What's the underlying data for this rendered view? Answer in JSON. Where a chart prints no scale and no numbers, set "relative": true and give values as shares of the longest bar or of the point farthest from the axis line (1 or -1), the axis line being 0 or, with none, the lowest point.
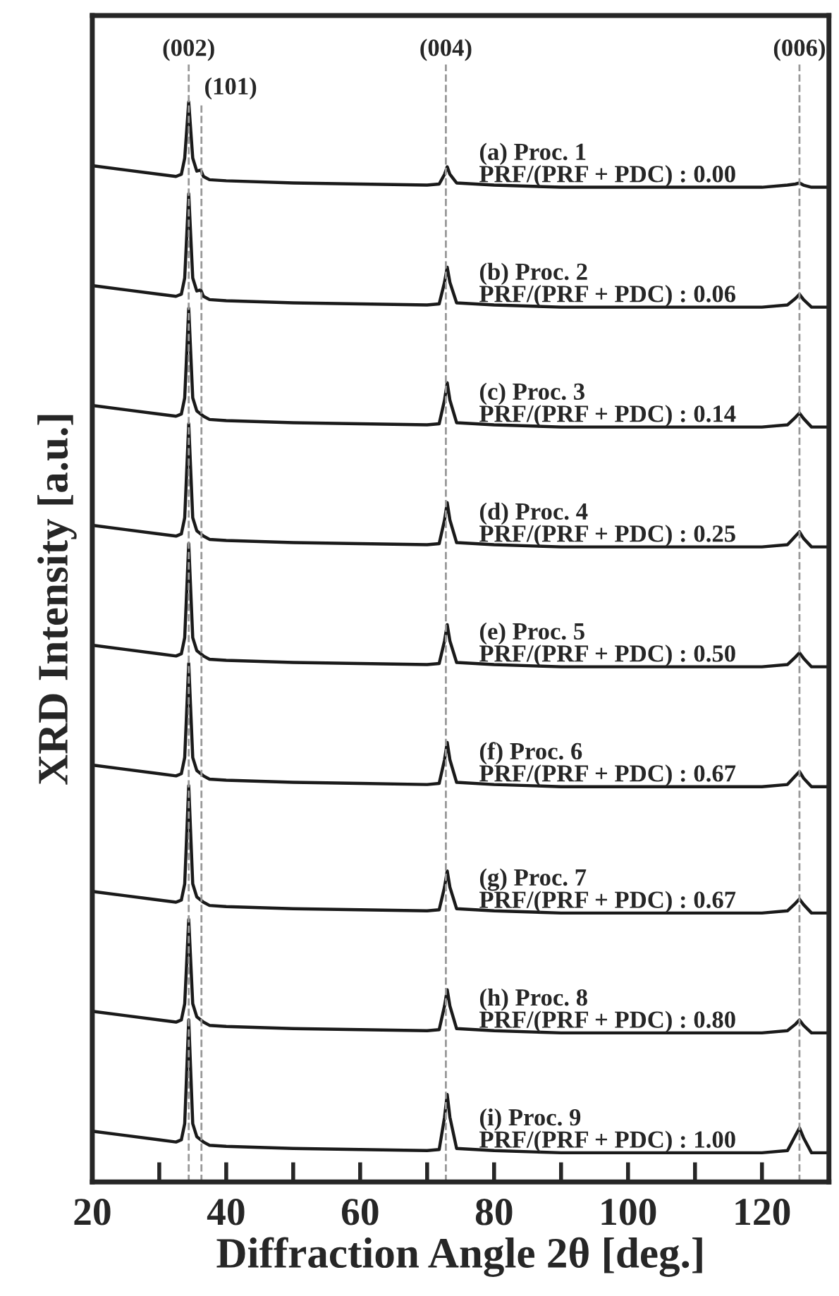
{
  "chart_data": {
    "type": "line",
    "relative": true,
    "xlabel": "Diffraction Angle 2θ [deg.]",
    "ylabel": "XRD Intensity [a.u.]",
    "x": [
      20,
      25,
      30,
      32.5,
      33.3,
      33.8,
      34.4,
      35.0,
      35.6,
      36.2,
      36.6,
      37.5,
      40,
      50,
      60,
      70,
      71.8,
      72.6,
      73.0,
      73.4,
      74.4,
      80,
      90,
      100,
      110,
      120,
      123.8,
      125.0,
      125.6,
      126.2,
      127.4,
      130
    ],
    "xlim": [
      20,
      130
    ],
    "xticks": [
      20,
      {
        "value": 30,
        "label": null
      },
      40,
      {
        "value": 50,
        "label": null
      },
      60,
      {
        "value": 70,
        "label": null
      },
      80,
      {
        "value": 90,
        "label": null
      },
      100,
      {
        "value": 110,
        "label": null
      },
      120
    ],
    "line_style": "solid",
    "marker": "none",
    "grid": false,
    "legend": false,
    "series": [
      {
        "name": "(a) Proc. 1\nPRF/(PRF + PDC) : 0.00",
        "color": "#1a1a1a",
        "values": [
          0.941,
          0.937,
          0.933,
          0.931,
          0.933,
          0.948,
          1.0,
          0.948,
          0.936,
          0.937,
          0.931,
          0.928,
          0.927,
          0.925,
          0.924,
          0.923,
          0.924,
          0.933,
          0.94,
          0.933,
          0.925,
          0.923,
          0.921,
          0.921,
          0.921,
          0.921,
          0.923,
          0.924,
          0.925,
          0.923,
          0.921,
          0.921
        ]
      },
      {
        "name": "(b) Proc. 2\nPRF/(PRF + PDC) : 0.06",
        "color": "#1a1a1a",
        "values": [
          0.83,
          0.826,
          0.822,
          0.82,
          0.822,
          0.837,
          0.915,
          0.837,
          0.825,
          0.826,
          0.82,
          0.817,
          0.816,
          0.814,
          0.813,
          0.812,
          0.813,
          0.833,
          0.847,
          0.833,
          0.814,
          0.812,
          0.81,
          0.81,
          0.81,
          0.81,
          0.812,
          0.818,
          0.822,
          0.817,
          0.81,
          0.81
        ]
      },
      {
        "name": "(c) Proc. 3\nPRF/(PRF + PDC) : 0.14",
        "color": "#1a1a1a",
        "values": [
          0.719,
          0.715,
          0.711,
          0.709,
          0.711,
          0.726,
          0.809,
          0.726,
          0.714,
          0.711,
          0.709,
          0.706,
          0.705,
          0.703,
          0.702,
          0.701,
          0.702,
          0.724,
          0.74,
          0.724,
          0.703,
          0.701,
          0.699,
          0.699,
          0.699,
          0.699,
          0.701,
          0.708,
          0.712,
          0.707,
          0.699,
          0.699
        ]
      },
      {
        "name": "(d) Proc. 4\nPRF/(PRF + PDC) : 0.25",
        "color": "#1a1a1a",
        "values": [
          0.608,
          0.604,
          0.6,
          0.598,
          0.6,
          0.615,
          0.702,
          0.615,
          0.603,
          0.6,
          0.598,
          0.595,
          0.594,
          0.592,
          0.591,
          0.59,
          0.591,
          0.613,
          0.629,
          0.613,
          0.592,
          0.59,
          0.588,
          0.588,
          0.588,
          0.588,
          0.59,
          0.598,
          0.602,
          0.596,
          0.588,
          0.588
        ]
      },
      {
        "name": "(e) Proc. 5\nPRF/(PRF + PDC) : 0.50",
        "color": "#1a1a1a",
        "values": [
          0.497,
          0.493,
          0.489,
          0.487,
          0.489,
          0.504,
          0.591,
          0.504,
          0.492,
          0.489,
          0.487,
          0.484,
          0.483,
          0.481,
          0.48,
          0.479,
          0.48,
          0.501,
          0.516,
          0.501,
          0.481,
          0.479,
          0.477,
          0.477,
          0.477,
          0.477,
          0.479,
          0.486,
          0.49,
          0.485,
          0.477,
          0.477
        ]
      },
      {
        "name": "(f) Proc. 6\nPRF/(PRF + PDC) : 0.67",
        "color": "#1a1a1a",
        "values": [
          0.386,
          0.382,
          0.378,
          0.376,
          0.378,
          0.393,
          0.48,
          0.393,
          0.381,
          0.378,
          0.376,
          0.373,
          0.372,
          0.37,
          0.369,
          0.368,
          0.369,
          0.391,
          0.407,
          0.391,
          0.37,
          0.368,
          0.366,
          0.366,
          0.366,
          0.366,
          0.368,
          0.376,
          0.38,
          0.374,
          0.366,
          0.366
        ]
      },
      {
        "name": "(g) Proc. 7\nPRF/(PRF + PDC) : 0.67",
        "color": "#1a1a1a",
        "values": [
          0.269,
          0.265,
          0.261,
          0.259,
          0.261,
          0.276,
          0.367,
          0.276,
          0.264,
          0.261,
          0.259,
          0.256,
          0.255,
          0.253,
          0.252,
          0.251,
          0.252,
          0.273,
          0.288,
          0.273,
          0.253,
          0.251,
          0.249,
          0.249,
          0.249,
          0.249,
          0.251,
          0.258,
          0.262,
          0.257,
          0.249,
          0.249
        ]
      },
      {
        "name": "(h) Proc. 8\nPRF/(PRF + PDC) : 0.80",
        "color": "#1a1a1a",
        "values": [
          0.158,
          0.154,
          0.15,
          0.148,
          0.15,
          0.165,
          0.243,
          0.165,
          0.153,
          0.15,
          0.148,
          0.145,
          0.144,
          0.142,
          0.141,
          0.14,
          0.141,
          0.163,
          0.178,
          0.163,
          0.142,
          0.14,
          0.138,
          0.138,
          0.138,
          0.138,
          0.14,
          0.146,
          0.15,
          0.145,
          0.138,
          0.138
        ]
      },
      {
        "name": "(i) Proc. 9\nPRF/(PRF + PDC) : 1.00",
        "color": "#1a1a1a",
        "values": [
          0.047,
          0.043,
          0.039,
          0.037,
          0.039,
          0.054,
          0.15,
          0.054,
          0.042,
          0.039,
          0.037,
          0.034,
          0.033,
          0.031,
          0.03,
          0.029,
          0.03,
          0.06,
          0.081,
          0.06,
          0.031,
          0.029,
          0.027,
          0.027,
          0.027,
          0.027,
          0.029,
          0.043,
          0.05,
          0.041,
          0.027,
          0.027
        ]
      }
    ],
    "ref_lines": [
      {
        "axis": "x",
        "value": 34.4,
        "color": "#999999",
        "line_style": "dashed"
      },
      {
        "axis": "x",
        "value": 36.3,
        "color": "#999999",
        "line_style": "dashed"
      },
      {
        "axis": "x",
        "value": 72.8,
        "color": "#999999",
        "line_style": "dashed"
      },
      {
        "axis": "x",
        "value": 125.6,
        "color": "#999999",
        "line_style": "dashed"
      }
    ],
    "annotations": [
      "(002)",
      "(101)",
      "(004)",
      "(006)"
    ]
  }
}
